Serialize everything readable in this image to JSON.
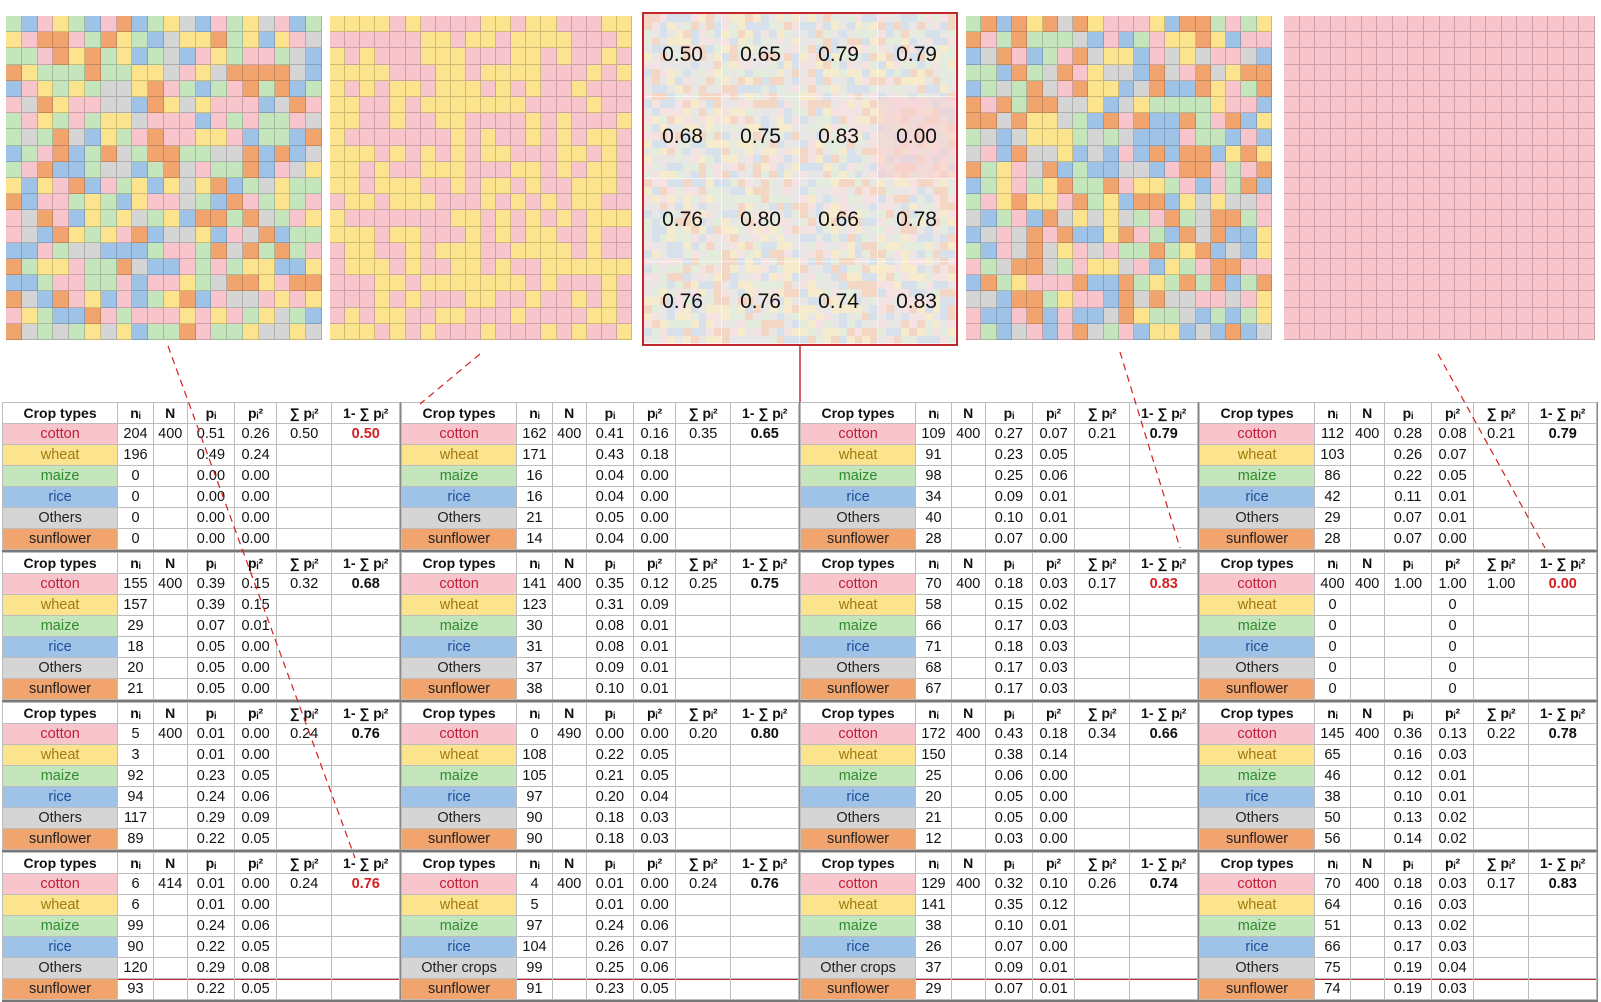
{
  "crop_colors": {
    "cotton": "#f8c5cd",
    "wheat": "#fbe48d",
    "maize": "#c5e6bd",
    "rice": "#9fc3e7",
    "Others": "#d5d5d5",
    "sunflower": "#f2a46f"
  },
  "crop_text_colors": {
    "cotton": "#c01f3a",
    "wheat": "#a07a10",
    "maize": "#2e8b2e",
    "rice": "#1f4e9a",
    "Others": "#222222",
    "sunflower": "#222222"
  },
  "headers": [
    "Crop types",
    "nᵢ",
    "N",
    "pᵢ",
    "pᵢ²",
    "∑ pᵢ²",
    "1- ∑ pᵢ²"
  ],
  "index_grid": [
    [
      "0.50",
      "0.65",
      "0.79",
      "0.79"
    ],
    [
      "0.68",
      "0.75",
      "0.83",
      "0.00"
    ],
    [
      "0.76",
      "0.80",
      "0.66",
      "0.78"
    ],
    [
      "0.76",
      "0.76",
      "0.74",
      "0.83"
    ]
  ],
  "tables": [
    {
      "N": "400",
      "sum": "0.50",
      "gs": "0.50",
      "gs_red": true,
      "rows": [
        [
          "cotton",
          "204",
          "0.51",
          "0.26"
        ],
        [
          "wheat",
          "196",
          "0.49",
          "0.24"
        ],
        [
          "maize",
          "0",
          "0.00",
          "0.00"
        ],
        [
          "rice",
          "0",
          "0.00",
          "0.00"
        ],
        [
          "Others",
          "0",
          "0.00",
          "0.00"
        ],
        [
          "sunflower",
          "0",
          "0.00",
          "0.00"
        ]
      ]
    },
    {
      "N": "400",
      "sum": "0.35",
      "gs": "0.65",
      "gs_red": false,
      "rows": [
        [
          "cotton",
          "162",
          "0.41",
          "0.16"
        ],
        [
          "wheat",
          "171",
          "0.43",
          "0.18"
        ],
        [
          "maize",
          "16",
          "0.04",
          "0.00"
        ],
        [
          "rice",
          "16",
          "0.04",
          "0.00"
        ],
        [
          "Others",
          "21",
          "0.05",
          "0.00"
        ],
        [
          "sunflower",
          "14",
          "0.04",
          "0.00"
        ]
      ]
    },
    {
      "N": "400",
      "sum": "0.21",
      "gs": "0.79",
      "gs_red": false,
      "rows": [
        [
          "cotton",
          "109",
          "0.27",
          "0.07"
        ],
        [
          "wheat",
          "91",
          "0.23",
          "0.05"
        ],
        [
          "maize",
          "98",
          "0.25",
          "0.06"
        ],
        [
          "rice",
          "34",
          "0.09",
          "0.01"
        ],
        [
          "Others",
          "40",
          "0.10",
          "0.01"
        ],
        [
          "sunflower",
          "28",
          "0.07",
          "0.00"
        ]
      ]
    },
    {
      "N": "400",
      "sum": "0.21",
      "gs": "0.79",
      "gs_red": false,
      "rows": [
        [
          "cotton",
          "112",
          "0.28",
          "0.08"
        ],
        [
          "wheat",
          "103",
          "0.26",
          "0.07"
        ],
        [
          "maize",
          "86",
          "0.22",
          "0.05"
        ],
        [
          "rice",
          "42",
          "0.11",
          "0.01"
        ],
        [
          "Others",
          "29",
          "0.07",
          "0.01"
        ],
        [
          "sunflower",
          "28",
          "0.07",
          "0.00"
        ]
      ]
    },
    {
      "N": "400",
      "sum": "0.32",
      "gs": "0.68",
      "gs_red": false,
      "rows": [
        [
          "cotton",
          "155",
          "0.39",
          "0.15"
        ],
        [
          "wheat",
          "157",
          "0.39",
          "0.15"
        ],
        [
          "maize",
          "29",
          "0.07",
          "0.01"
        ],
        [
          "rice",
          "18",
          "0.05",
          "0.00"
        ],
        [
          "Others",
          "20",
          "0.05",
          "0.00"
        ],
        [
          "sunflower",
          "21",
          "0.05",
          "0.00"
        ]
      ]
    },
    {
      "N": "400",
      "sum": "0.25",
      "gs": "0.75",
      "gs_red": false,
      "rows": [
        [
          "cotton",
          "141",
          "0.35",
          "0.12"
        ],
        [
          "wheat",
          "123",
          "0.31",
          "0.09"
        ],
        [
          "maize",
          "30",
          "0.08",
          "0.01"
        ],
        [
          "rice",
          "31",
          "0.08",
          "0.01"
        ],
        [
          "Others",
          "37",
          "0.09",
          "0.01"
        ],
        [
          "sunflower",
          "38",
          "0.10",
          "0.01"
        ]
      ]
    },
    {
      "N": "400",
      "sum": "0.17",
      "gs": "0.83",
      "gs_red": true,
      "rows": [
        [
          "cotton",
          "70",
          "0.18",
          "0.03"
        ],
        [
          "wheat",
          "58",
          "0.15",
          "0.02"
        ],
        [
          "maize",
          "66",
          "0.17",
          "0.03"
        ],
        [
          "rice",
          "71",
          "0.18",
          "0.03"
        ],
        [
          "Others",
          "68",
          "0.17",
          "0.03"
        ],
        [
          "sunflower",
          "67",
          "0.17",
          "0.03"
        ]
      ]
    },
    {
      "N": "400",
      "sum": "1.00",
      "gs": "0.00",
      "gs_red": true,
      "rows": [
        [
          "cotton",
          "400",
          "1.00",
          "1.00"
        ],
        [
          "wheat",
          "0",
          "",
          "0"
        ],
        [
          "maize",
          "0",
          "",
          "0"
        ],
        [
          "rice",
          "0",
          "",
          "0"
        ],
        [
          "Others",
          "0",
          "",
          "0"
        ],
        [
          "sunflower",
          "0",
          "",
          "0"
        ]
      ]
    },
    {
      "N": "400",
      "sum": "0.24",
      "gs": "0.76",
      "gs_red": false,
      "rows": [
        [
          "cotton",
          "5",
          "0.01",
          "0.00"
        ],
        [
          "wheat",
          "3",
          "0.01",
          "0.00"
        ],
        [
          "maize",
          "92",
          "0.23",
          "0.05"
        ],
        [
          "rice",
          "94",
          "0.24",
          "0.06"
        ],
        [
          "Others",
          "117",
          "0.29",
          "0.09"
        ],
        [
          "sunflower",
          "89",
          "0.22",
          "0.05"
        ]
      ]
    },
    {
      "N": "490",
      "sum": "0.20",
      "gs": "0.80",
      "gs_red": false,
      "rows": [
        [
          "cotton",
          "0",
          "0.00",
          "0.00"
        ],
        [
          "wheat",
          "108",
          "0.22",
          "0.05"
        ],
        [
          "maize",
          "105",
          "0.21",
          "0.05"
        ],
        [
          "rice",
          "97",
          "0.20",
          "0.04"
        ],
        [
          "Others",
          "90",
          "0.18",
          "0.03"
        ],
        [
          "sunflower",
          "90",
          "0.18",
          "0.03"
        ]
      ]
    },
    {
      "N": "400",
      "sum": "0.34",
      "gs": "0.66",
      "gs_red": false,
      "rows": [
        [
          "cotton",
          "172",
          "0.43",
          "0.18"
        ],
        [
          "wheat",
          "150",
          "0.38",
          "0.14"
        ],
        [
          "maize",
          "25",
          "0.06",
          "0.00"
        ],
        [
          "rice",
          "20",
          "0.05",
          "0.00"
        ],
        [
          "Others",
          "21",
          "0.05",
          "0.00"
        ],
        [
          "sunflower",
          "12",
          "0.03",
          "0.00"
        ]
      ]
    },
    {
      "N": "400",
      "sum": "0.22",
      "gs": "0.78",
      "gs_red": false,
      "rows": [
        [
          "cotton",
          "145",
          "0.36",
          "0.13"
        ],
        [
          "wheat",
          "65",
          "0.16",
          "0.03"
        ],
        [
          "maize",
          "46",
          "0.12",
          "0.01"
        ],
        [
          "rice",
          "38",
          "0.10",
          "0.01"
        ],
        [
          "Others",
          "50",
          "0.13",
          "0.02"
        ],
        [
          "sunflower",
          "56",
          "0.14",
          "0.02"
        ]
      ]
    },
    {
      "N": "414",
      "sum": "0.24",
      "gs": "0.76",
      "gs_red": true,
      "rows": [
        [
          "cotton",
          "6",
          "0.01",
          "0.00"
        ],
        [
          "wheat",
          "6",
          "0.01",
          "0.00"
        ],
        [
          "maize",
          "99",
          "0.24",
          "0.06"
        ],
        [
          "rice",
          "90",
          "0.22",
          "0.05"
        ],
        [
          "Others",
          "120",
          "0.29",
          "0.08"
        ],
        [
          "sunflower",
          "93",
          "0.22",
          "0.05"
        ]
      ]
    },
    {
      "N": "400",
      "sum": "0.24",
      "gs": "0.76",
      "gs_red": false,
      "rows": [
        [
          "cotton",
          "4",
          "0.01",
          "0.00"
        ],
        [
          "wheat",
          "5",
          "0.01",
          "0.00"
        ],
        [
          "maize",
          "97",
          "0.24",
          "0.06"
        ],
        [
          "rice",
          "104",
          "0.26",
          "0.07"
        ],
        [
          "Other crops",
          "99",
          "0.25",
          "0.06"
        ],
        [
          "sunflower",
          "91",
          "0.23",
          "0.05"
        ]
      ]
    },
    {
      "N": "400",
      "sum": "0.26",
      "gs": "0.74",
      "gs_red": false,
      "rows": [
        [
          "cotton",
          "129",
          "0.32",
          "0.10"
        ],
        [
          "wheat",
          "141",
          "0.35",
          "0.12"
        ],
        [
          "maize",
          "38",
          "0.10",
          "0.01"
        ],
        [
          "rice",
          "26",
          "0.07",
          "0.00"
        ],
        [
          "Other crops",
          "37",
          "0.09",
          "0.01"
        ],
        [
          "sunflower",
          "29",
          "0.07",
          "0.01"
        ]
      ]
    },
    {
      "N": "400",
      "sum": "0.17",
      "gs": "0.83",
      "gs_red": false,
      "rows": [
        [
          "cotton",
          "70",
          "0.18",
          "0.03"
        ],
        [
          "wheat",
          "64",
          "0.16",
          "0.03"
        ],
        [
          "maize",
          "51",
          "0.13",
          "0.02"
        ],
        [
          "rice",
          "66",
          "0.17",
          "0.03"
        ],
        [
          "Others",
          "75",
          "0.19",
          "0.04"
        ],
        [
          "sunflower",
          "74",
          "0.19",
          "0.03"
        ]
      ]
    }
  ]
}
